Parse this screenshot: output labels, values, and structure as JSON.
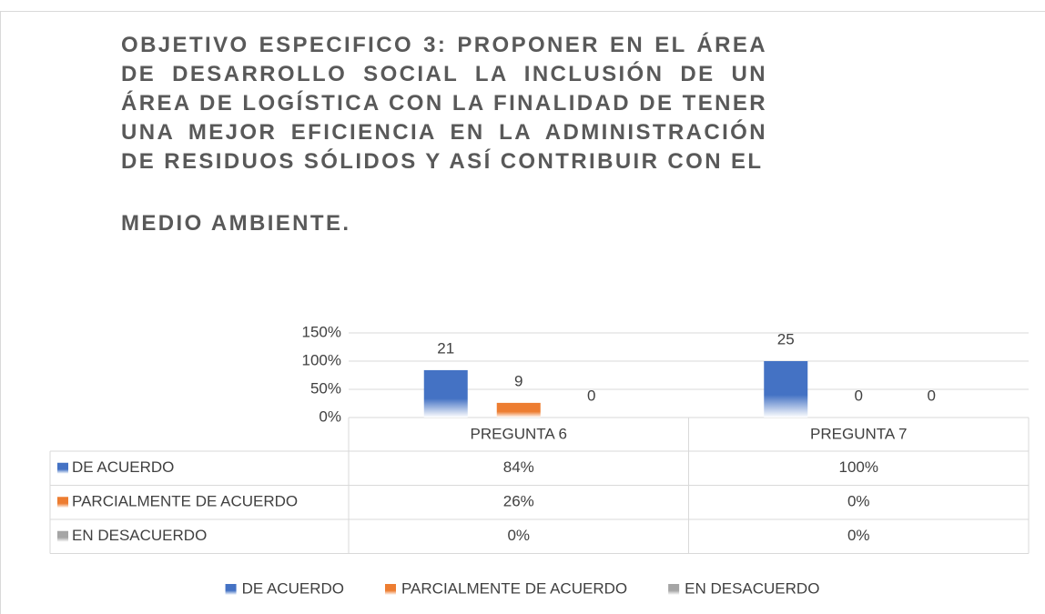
{
  "chart_data": {
    "type": "bar",
    "title": [
      "OBJETIVO ESPECIFICO 3: PROPONER EN EL ÁREA DE DESARROLLO SOCIAL LA INCLUSIÓN DE UN ÁREA DE LOGÍSTICA CON LA FINALIDAD DE TENER UNA MEJOR EFICIENCIA EN LA ADMINISTRACIÓN DE RESIDUOS SÓLIDOS Y ASÍ CONTRIBUIR CON EL",
      "MEDIO AMBIENTE."
    ],
    "categories": [
      "PREGUNTA 6",
      "PREGUNTA 7"
    ],
    "series": [
      {
        "name": "DE ACUERDO",
        "color": "#4472c4",
        "values": [
          84,
          100
        ],
        "value_labels": [
          "84%",
          "100%"
        ],
        "counts": [
          21,
          25
        ]
      },
      {
        "name": "PARCIALMENTE DE ACUERDO",
        "color": "#ed7d31",
        "values": [
          26,
          0
        ],
        "value_labels": [
          "26%",
          "0%"
        ],
        "counts": [
          9,
          0
        ]
      },
      {
        "name": "EN DESACUERDO",
        "color": "#a5a5a5",
        "values": [
          0,
          0
        ],
        "value_labels": [
          "0%",
          "0%"
        ],
        "counts": [
          0,
          0
        ]
      }
    ],
    "ylim": [
      0,
      150
    ],
    "yticks": [
      {
        "value": 0,
        "label": "0%"
      },
      {
        "value": 50,
        "label": "50%"
      },
      {
        "value": 100,
        "label": "100%"
      },
      {
        "value": 150,
        "label": "150%"
      }
    ],
    "grid": true,
    "data_table": true,
    "legend": "bottom"
  }
}
